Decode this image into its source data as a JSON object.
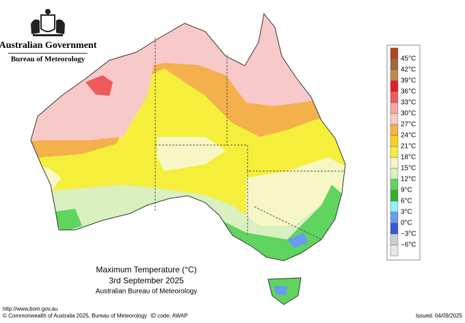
{
  "header": {
    "agency": "Australian Government",
    "bureau": "Bureau of Meteorology"
  },
  "caption": {
    "title": "Maximum Temperature (°C)",
    "date": "3rd September 2025",
    "source": "Australian Bureau of Meteorology"
  },
  "legend": {
    "colors": [
      "#b0471f",
      "#9a6a3a",
      "#c0884f",
      "#e41e26",
      "#f05a5a",
      "#f4a6a6",
      "#f7c9c9",
      "#f4b04a",
      "#f5d31f",
      "#f5ef3c",
      "#f7f7c6",
      "#d9f0bf",
      "#5fd45f",
      "#2fb22f",
      "#8ef2f2",
      "#6a9cf0",
      "#3a58d6",
      "#cfcfcf",
      "#e7e7e7"
    ],
    "labels": [
      "45°C",
      "42°C",
      "39°C",
      "36°C",
      "33°C",
      "30°C",
      "27°C",
      "24°C",
      "21°C",
      "18°C",
      "15°C",
      "12°C",
      "9°C",
      "6°C",
      "3°C",
      "0°C",
      "−3°C",
      "−6°C"
    ]
  },
  "footer": {
    "url": "http://www.bom.gov.au",
    "copyright": "© Commonwealth of Australia 2025, Bureau of Meteorology",
    "id_code": "ID code: AWAP",
    "issued": "Issued: 04/09/2025"
  }
}
